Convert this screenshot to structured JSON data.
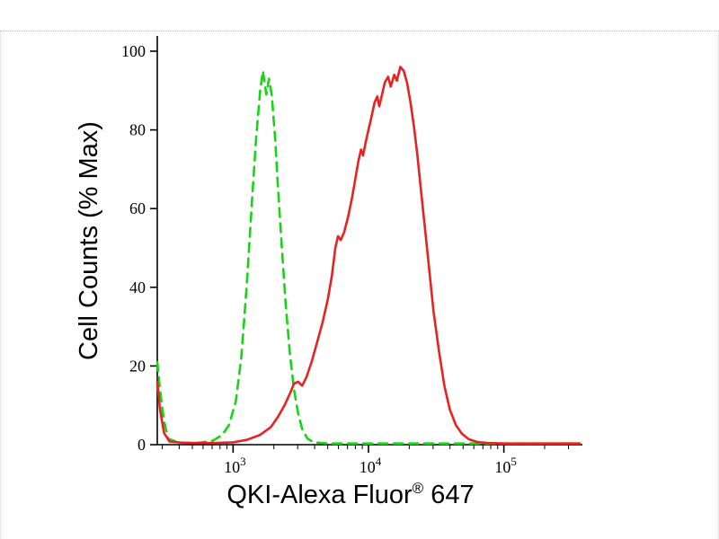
{
  "chart_data": {
    "type": "line",
    "title": "",
    "ylabel": "Cell Counts (% Max)",
    "xlabel_parts": {
      "pre": "QKI-Alexa Fluor",
      "sup": "®",
      "post": " 647"
    },
    "x_scale": "log10",
    "x_range_log": [
      2.44,
      5.58
    ],
    "x_tick_base": "10",
    "x_tick_exponents": [
      3,
      4,
      5
    ],
    "ylim": [
      0,
      100
    ],
    "y_ticks": [
      0,
      20,
      40,
      60,
      80,
      100
    ],
    "grid": false,
    "legend": "none",
    "axis_color": "#000000",
    "series": [
      {
        "name": "green-dashed-histogram",
        "color": "#17d417",
        "style": "dashed",
        "points_logx_y": [
          [
            2.44,
            21
          ],
          [
            2.46,
            14
          ],
          [
            2.49,
            6
          ],
          [
            2.52,
            1.5
          ],
          [
            2.6,
            0.5
          ],
          [
            2.75,
            0.5
          ],
          [
            2.85,
            1
          ],
          [
            2.92,
            2.5
          ],
          [
            2.97,
            5
          ],
          [
            3.02,
            11
          ],
          [
            3.06,
            22
          ],
          [
            3.1,
            40
          ],
          [
            3.14,
            62
          ],
          [
            3.17,
            78
          ],
          [
            3.2,
            90
          ],
          [
            3.22,
            95
          ],
          [
            3.245,
            89
          ],
          [
            3.265,
            93
          ],
          [
            3.285,
            89
          ],
          [
            3.31,
            78
          ],
          [
            3.33,
            66
          ],
          [
            3.36,
            50
          ],
          [
            3.39,
            35
          ],
          [
            3.42,
            23
          ],
          [
            3.45,
            14
          ],
          [
            3.48,
            8
          ],
          [
            3.51,
            4
          ],
          [
            3.55,
            1.5
          ],
          [
            3.6,
            0.6
          ],
          [
            3.7,
            0.3
          ],
          [
            3.9,
            0.3
          ],
          [
            4.2,
            0.3
          ],
          [
            4.5,
            0.3
          ],
          [
            4.8,
            0.3
          ],
          [
            5.1,
            0.3
          ],
          [
            5.4,
            0.3
          ],
          [
            5.56,
            0.3
          ]
        ]
      },
      {
        "name": "red-solid-histogram",
        "color": "#e62222",
        "style": "solid",
        "points_logx_y": [
          [
            2.44,
            16
          ],
          [
            2.46,
            9
          ],
          [
            2.49,
            3
          ],
          [
            2.53,
            0.8
          ],
          [
            2.65,
            0.4
          ],
          [
            2.85,
            0.4
          ],
          [
            3.0,
            0.6
          ],
          [
            3.1,
            1.2
          ],
          [
            3.2,
            2.5
          ],
          [
            3.28,
            4.5
          ],
          [
            3.33,
            7
          ],
          [
            3.38,
            10
          ],
          [
            3.42,
            13
          ],
          [
            3.45,
            15.5
          ],
          [
            3.48,
            16
          ],
          [
            3.51,
            15
          ],
          [
            3.54,
            17
          ],
          [
            3.58,
            21
          ],
          [
            3.62,
            26
          ],
          [
            3.66,
            31
          ],
          [
            3.7,
            37
          ],
          [
            3.73,
            43
          ],
          [
            3.755,
            50
          ],
          [
            3.775,
            53
          ],
          [
            3.795,
            52
          ],
          [
            3.82,
            54
          ],
          [
            3.85,
            58
          ],
          [
            3.88,
            63
          ],
          [
            3.905,
            68
          ],
          [
            3.925,
            72
          ],
          [
            3.945,
            75
          ],
          [
            3.96,
            73.5
          ],
          [
            3.98,
            77
          ],
          [
            4.0,
            80
          ],
          [
            4.02,
            83
          ],
          [
            4.045,
            87
          ],
          [
            4.065,
            88.5
          ],
          [
            4.08,
            86
          ],
          [
            4.1,
            89
          ],
          [
            4.12,
            92
          ],
          [
            4.145,
            93.5
          ],
          [
            4.165,
            91
          ],
          [
            4.19,
            94
          ],
          [
            4.21,
            92.5
          ],
          [
            4.235,
            96
          ],
          [
            4.26,
            95
          ],
          [
            4.285,
            92
          ],
          [
            4.31,
            87
          ],
          [
            4.335,
            81
          ],
          [
            4.36,
            74
          ],
          [
            4.39,
            64
          ],
          [
            4.42,
            54
          ],
          [
            4.45,
            44
          ],
          [
            4.48,
            34
          ],
          [
            4.52,
            24
          ],
          [
            4.56,
            15
          ],
          [
            4.6,
            9
          ],
          [
            4.645,
            5
          ],
          [
            4.69,
            2.8
          ],
          [
            4.74,
            1.4
          ],
          [
            4.8,
            0.7
          ],
          [
            4.88,
            0.4
          ],
          [
            5.0,
            0.3
          ],
          [
            5.2,
            0.3
          ],
          [
            5.4,
            0.3
          ],
          [
            5.56,
            0.3
          ]
        ]
      }
    ]
  }
}
